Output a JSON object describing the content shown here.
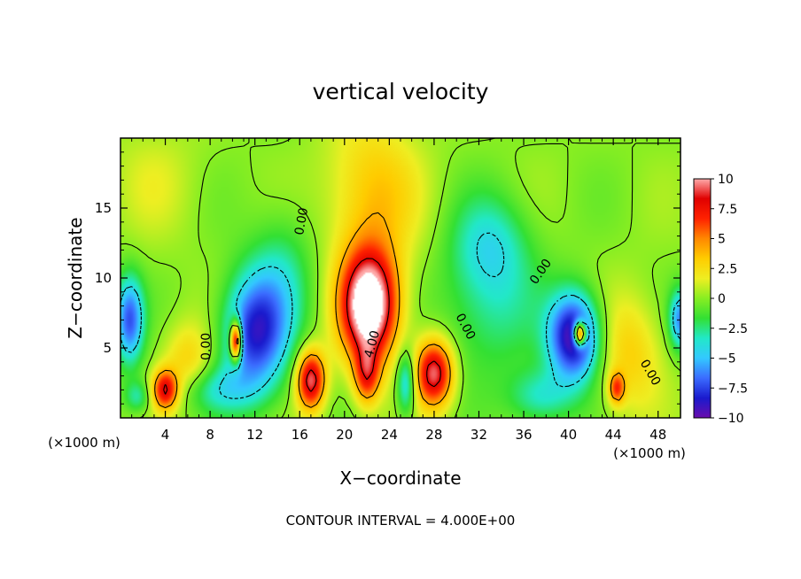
{
  "chart_data": {
    "type": "heatmap",
    "title": "vertical velocity",
    "xlabel": "X−coordinate",
    "ylabel": "Z−coordinate",
    "x_unit_left": "(×1000 m)",
    "x_unit_right": "(×1000 m)",
    "footer": "CONTOUR INTERVAL = 4.000E+00",
    "xlim": [
      0,
      50
    ],
    "ylim": [
      0,
      20
    ],
    "x_ticks": [
      4,
      8,
      12,
      16,
      20,
      24,
      28,
      32,
      36,
      40,
      44,
      48
    ],
    "x_tick_labels": [
      "4",
      "8",
      "12",
      "16",
      "20",
      "24",
      "28",
      "32",
      "36",
      "40",
      "44",
      "48"
    ],
    "y_ticks": [
      5,
      10,
      15
    ],
    "y_tick_labels": [
      "5",
      "10",
      "15"
    ],
    "contour_levels": [
      -4,
      0,
      4,
      8
    ],
    "contour_label_text": "0.00",
    "contour_label_2": "4.00",
    "colorbar": {
      "min": -10,
      "max": 10,
      "tick_values": [
        10,
        7.5,
        5,
        2.5,
        0,
        -2.5,
        -5,
        -7.5,
        -10
      ],
      "tick_labels": [
        "10",
        "7.5",
        "5",
        "2.5",
        "0",
        "−2.5",
        "−5",
        "−7.5",
        "−10"
      ],
      "colors": [
        "#6a0dad",
        "#1a1acd",
        "#3b6cff",
        "#33c8ff",
        "#22e8c8",
        "#33e033",
        "#88ee22",
        "#eeee22",
        "#ffcc00",
        "#ff8800",
        "#ff2200",
        "#e00000",
        "#ffaaaa"
      ]
    },
    "features": [
      {
        "x": 22.2,
        "z": 8.0,
        "amp": 13.0,
        "sx": 1.8,
        "sz": 2.8
      },
      {
        "x": 22.0,
        "z": 3.0,
        "amp": 6.0,
        "sx": 0.8,
        "sz": 1.5
      },
      {
        "x": 28.0,
        "z": 3.2,
        "amp": 9.5,
        "sx": 1.2,
        "sz": 1.7
      },
      {
        "x": 17.0,
        "z": 2.7,
        "amp": 9.5,
        "sx": 0.9,
        "sz": 1.5
      },
      {
        "x": 4.0,
        "z": 2.0,
        "amp": 8.0,
        "sx": 0.8,
        "sz": 1.0
      },
      {
        "x": 44.3,
        "z": 2.1,
        "amp": 5.5,
        "sx": 0.5,
        "sz": 0.8
      },
      {
        "x": 12.0,
        "z": 6.0,
        "amp": -8.0,
        "sx": 2.0,
        "sz": 3.0
      },
      {
        "x": 10.3,
        "z": 5.5,
        "amp": 12.0,
        "sx": 0.35,
        "sz": 1.0
      },
      {
        "x": 40.5,
        "z": 5.8,
        "amp": -10.0,
        "sx": 1.6,
        "sz": 2.2
      },
      {
        "x": 41.0,
        "z": 6.0,
        "amp": 13.0,
        "sx": 0.4,
        "sz": 0.6
      },
      {
        "x": 0.8,
        "z": 7.0,
        "amp": -7.0,
        "sx": 0.9,
        "sz": 2.2
      },
      {
        "x": 50.0,
        "z": 7.0,
        "amp": -6.0,
        "sx": 0.7,
        "sz": 1.5
      },
      {
        "x": 25.5,
        "z": 2.5,
        "amp": -5.0,
        "sx": 0.6,
        "sz": 1.6
      },
      {
        "x": 1.5,
        "z": 1.5,
        "amp": -3.0,
        "sx": 0.8,
        "sz": 0.8
      },
      {
        "x": 8.5,
        "z": 2.0,
        "amp": -3.0,
        "sx": 2.5,
        "sz": 1.2
      },
      {
        "x": 14.5,
        "z": 10.0,
        "amp": -2.5,
        "sx": 2.0,
        "sz": 3.5
      },
      {
        "x": 33.0,
        "z": 8.0,
        "amp": -2.8,
        "sx": 3.0,
        "sz": 3.5
      },
      {
        "x": 37.5,
        "z": 1.5,
        "amp": -3.5,
        "sx": 2.0,
        "sz": 1.4
      },
      {
        "x": 45.5,
        "z": 4.5,
        "amp": 3.0,
        "sx": 2.0,
        "sz": 3.0
      },
      {
        "x": 22.5,
        "z": 16.0,
        "amp": 3.5,
        "sx": 3.0,
        "sz": 4.0
      },
      {
        "x": 33.0,
        "z": 12.5,
        "amp": -3.0,
        "sx": 2.5,
        "sz": 2.5
      },
      {
        "x": 6.0,
        "z": 4.0,
        "amp": 3.0,
        "sx": 1.5,
        "sz": 2.0
      },
      {
        "x": 3.0,
        "z": 17.0,
        "amp": 1.2,
        "sx": 3.0,
        "sz": 3.0
      }
    ]
  }
}
